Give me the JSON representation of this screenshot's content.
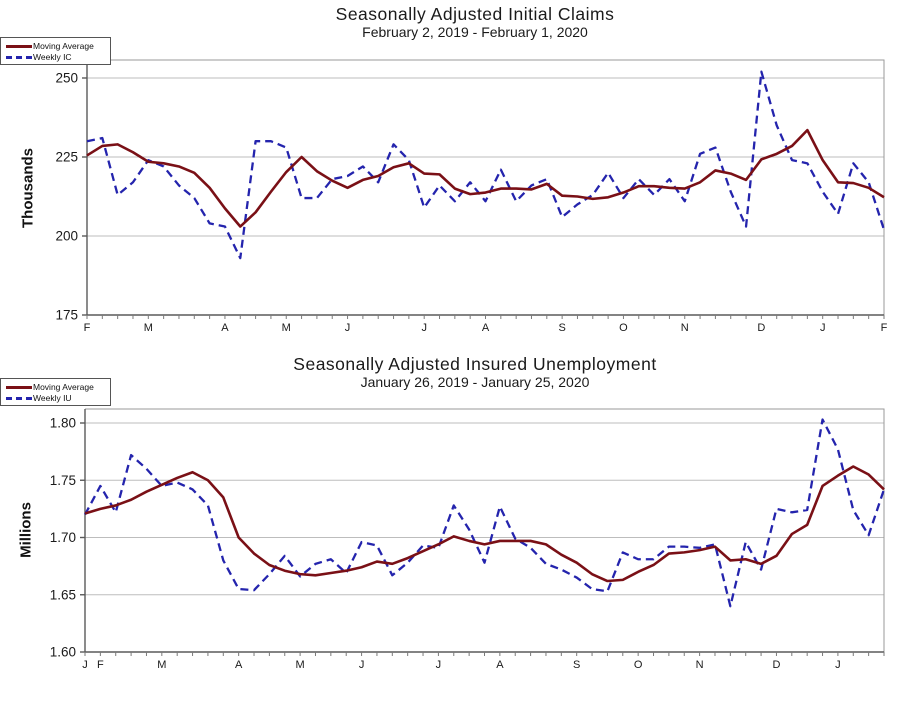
{
  "page": {
    "background": "#ffffff"
  },
  "colors": {
    "moving_average": "#7a1016",
    "weekly": "#2424ad",
    "gridline": "#bdbdbd",
    "plot_border": "#9a9a9a",
    "axis": "#5a5a5a",
    "tick": "#7a7a7a",
    "text": "#1a1a1a"
  },
  "chart_data": [
    {
      "type": "line",
      "title": "Seasonally Adjusted Initial Claims",
      "subtitle": "February 2, 2019 - February 1, 2020",
      "ylabel": "Thousands",
      "xlabel": "",
      "ylim": [
        175,
        250
      ],
      "grid": "horizontal",
      "legend_position": "top-right",
      "weeks": 53,
      "yticks": [
        {
          "label": "250",
          "value": 250
        },
        {
          "label": "225",
          "value": 225
        },
        {
          "label": "200",
          "value": 200
        },
        {
          "label": "175",
          "value": 175
        }
      ],
      "xticks": [
        {
          "label": "F",
          "week": 0
        },
        {
          "label": "M",
          "week": 4
        },
        {
          "label": "A",
          "week": 9
        },
        {
          "label": "M",
          "week": 13
        },
        {
          "label": "J",
          "week": 17
        },
        {
          "label": "J",
          "week": 22
        },
        {
          "label": "A",
          "week": 26
        },
        {
          "label": "S",
          "week": 31
        },
        {
          "label": "O",
          "week": 35
        },
        {
          "label": "N",
          "week": 39
        },
        {
          "label": "D",
          "week": 44
        },
        {
          "label": "J",
          "week": 48
        },
        {
          "label": "F",
          "week": 52
        }
      ],
      "legend": [
        "Moving Average",
        "Weekly IC"
      ],
      "series": [
        {
          "name": "Moving Average",
          "style": "solid",
          "values": [
            225.5,
            228.5,
            229,
            226.5,
            223.5,
            223,
            222,
            220,
            215.25,
            208.75,
            203,
            207.5,
            214,
            220.25,
            225,
            220.5,
            217.5,
            215.25,
            217.75,
            219,
            221.75,
            223,
            219.75,
            219.5,
            215,
            213.25,
            213.75,
            215,
            215,
            214.75,
            216.5,
            212.75,
            212.5,
            211.75,
            212.25,
            213.75,
            215.75,
            215.75,
            215.25,
            215,
            217,
            220.75,
            219.75,
            217.75,
            224.25,
            226,
            228.5,
            233.5,
            224,
            217,
            216.75,
            215.25,
            212.25
          ]
        },
        {
          "name": "Weekly IC",
          "style": "dashed",
          "values": [
            230,
            231,
            213,
            217,
            224,
            222,
            216,
            212,
            204,
            203,
            193,
            230,
            230,
            228,
            212,
            212,
            218,
            219,
            222,
            217,
            229,
            224,
            209,
            216,
            211,
            217,
            211,
            221,
            211,
            216,
            218,
            206,
            210,
            213,
            220,
            212,
            218,
            213,
            218,
            211,
            226,
            228,
            214,
            203,
            252,
            235,
            224,
            223,
            214,
            207,
            223,
            217,
            202
          ]
        }
      ]
    },
    {
      "type": "line",
      "title": "Seasonally Adjusted Insured Unemployment",
      "subtitle": "January 26, 2019 - January 25, 2020",
      "ylabel": "Millions",
      "xlabel": "",
      "ylim": [
        1.6,
        1.8
      ],
      "grid": "horizontal",
      "legend_position": "top-right",
      "weeks": 53,
      "yticks": [
        {
          "label": "1.80",
          "value": 1.8
        },
        {
          "label": "1.75",
          "value": 1.75
        },
        {
          "label": "1.70",
          "value": 1.7
        },
        {
          "label": "1.65",
          "value": 1.65
        },
        {
          "label": "1.60",
          "value": 1.6
        }
      ],
      "xticks": [
        {
          "label": "J",
          "week": 0
        },
        {
          "label": "F",
          "week": 1
        },
        {
          "label": "M",
          "week": 5
        },
        {
          "label": "A",
          "week": 10
        },
        {
          "label": "M",
          "week": 14
        },
        {
          "label": "J",
          "week": 18
        },
        {
          "label": "J",
          "week": 23
        },
        {
          "label": "A",
          "week": 27
        },
        {
          "label": "S",
          "week": 32
        },
        {
          "label": "O",
          "week": 36
        },
        {
          "label": "N",
          "week": 40
        },
        {
          "label": "D",
          "week": 45
        },
        {
          "label": "J",
          "week": 49
        }
      ],
      "legend": [
        "Moving Average",
        "Weekly IU"
      ],
      "series": [
        {
          "name": "Moving Average",
          "style": "solid",
          "values": [
            1.721,
            1.725,
            1.728,
            1.733,
            1.74,
            1.746,
            1.752,
            1.757,
            1.75,
            1.735,
            1.7,
            1.686,
            1.676,
            1.671,
            1.668,
            1.667,
            1.669,
            1.671,
            1.674,
            1.679,
            1.677,
            1.682,
            1.688,
            1.694,
            1.701,
            1.697,
            1.694,
            1.697,
            1.697,
            1.697,
            1.694,
            1.685,
            1.678,
            1.668,
            1.662,
            1.663,
            1.67,
            1.676,
            1.686,
            1.687,
            1.689,
            1.692,
            1.68,
            1.681,
            1.677,
            1.684,
            1.703,
            1.711,
            1.745,
            1.754,
            1.762,
            1.755,
            1.742
          ]
        },
        {
          "name": "Weekly IU",
          "style": "dashed",
          "values": [
            1.72,
            1.745,
            1.722,
            1.772,
            1.76,
            1.745,
            1.748,
            1.742,
            1.728,
            1.68,
            1.655,
            1.654,
            1.668,
            1.684,
            1.666,
            1.677,
            1.681,
            1.669,
            1.696,
            1.693,
            1.667,
            1.678,
            1.693,
            1.691,
            1.728,
            1.707,
            1.678,
            1.727,
            1.699,
            1.691,
            1.677,
            1.672,
            1.665,
            1.655,
            1.653,
            1.687,
            1.681,
            1.681,
            1.692,
            1.692,
            1.691,
            1.694,
            1.64,
            1.696,
            1.672,
            1.725,
            1.722,
            1.724,
            1.803,
            1.777,
            1.724,
            1.702,
            1.742
          ]
        }
      ]
    }
  ]
}
